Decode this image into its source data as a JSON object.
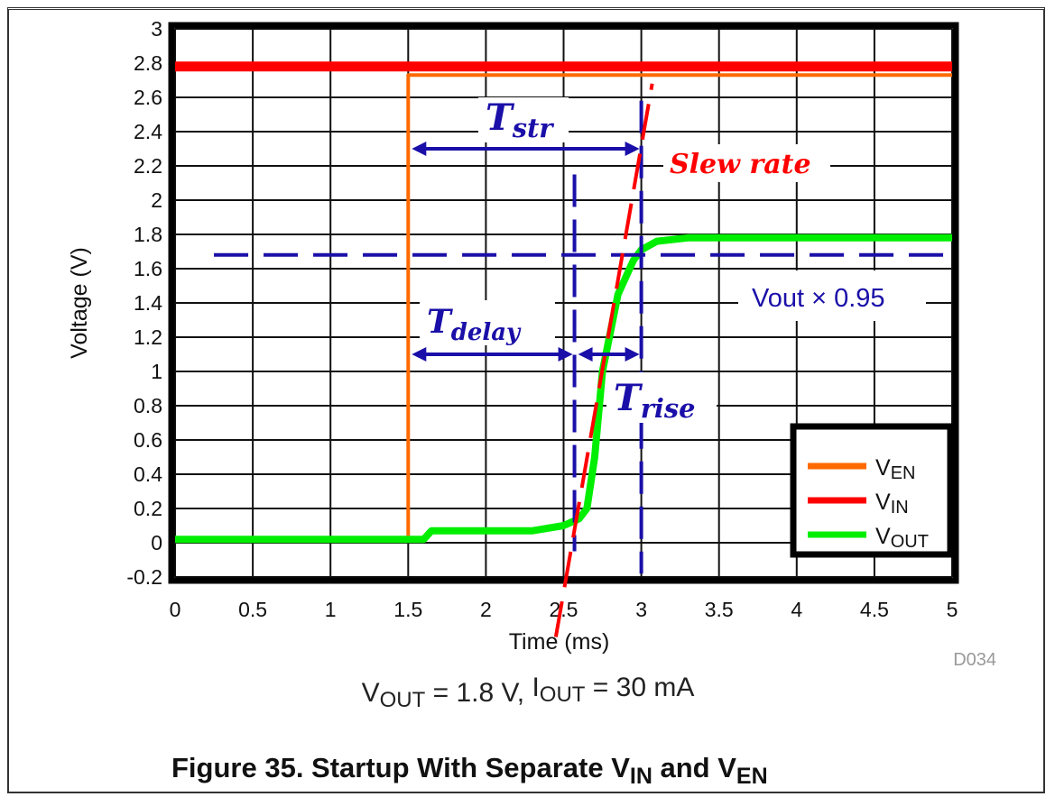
{
  "chart_data": {
    "type": "line",
    "xlabel": "Time (ms)",
    "ylabel": "Voltage (V)",
    "xlim": [
      0,
      5
    ],
    "ylim": [
      -0.2,
      3
    ],
    "xticks": [
      "0",
      "0.5",
      "1",
      "1.5",
      "2",
      "2.5",
      "3",
      "3.5",
      "4",
      "4.5",
      "5"
    ],
    "yticks": [
      "-0.2",
      "0",
      "0.2",
      "0.4",
      "0.6",
      "0.8",
      "1",
      "1.2",
      "1.4",
      "1.6",
      "1.8",
      "2",
      "2.2",
      "2.4",
      "2.6",
      "2.8",
      "3"
    ],
    "grid": true,
    "legend_placement": "bottom-right",
    "series": [
      {
        "name": "EN",
        "prefix": "V",
        "color": "#ff6a00",
        "x": [
          0,
          1.5,
          1.5,
          5
        ],
        "y": [
          0.02,
          0.02,
          2.73,
          2.73
        ]
      },
      {
        "name": "IN",
        "prefix": "V",
        "color": "#ff0000",
        "x": [
          0,
          5
        ],
        "y": [
          2.78,
          2.78
        ]
      },
      {
        "name": "OUT",
        "prefix": "V",
        "color": "#00ee00",
        "x": [
          0,
          1.6,
          1.65,
          2.3,
          2.5,
          2.6,
          2.65,
          2.7,
          2.75,
          2.85,
          2.95,
          3.0,
          3.1,
          3.3,
          5
        ],
        "y": [
          0.02,
          0.02,
          0.07,
          0.07,
          0.1,
          0.14,
          0.2,
          0.5,
          1.0,
          1.45,
          1.65,
          1.71,
          1.76,
          1.78,
          1.78
        ]
      }
    ],
    "watermark": "D034",
    "annotations": {
      "color_blue": "#1a0fa8",
      "color_red": "#ff0000",
      "vout95_level": 1.68,
      "vout95_label": "Vout × 0.95",
      "t_delay_end": 2.57,
      "t_rise_end": 3.0,
      "t_start": 1.5,
      "tstr_label": {
        "main": "T",
        "sub": "str"
      },
      "tdelay_label": {
        "main": "T",
        "sub": "delay"
      },
      "trise_label": {
        "main": "T",
        "sub": "rise"
      },
      "slew_label": "Slew rate",
      "slew_line": {
        "x": [
          2.45,
          3.07
        ],
        "y": [
          -0.55,
          2.68
        ]
      }
    }
  },
  "caption": {
    "condition": {
      "v": "V",
      "v_sub": "OUT",
      "v_val": " = 1.8 V, ",
      "i": "I",
      "i_sub": "OUT",
      "i_val": " = 30 mA"
    },
    "figure_number": "Figure 35.",
    "title_parts": [
      "Startup With Separate V",
      "IN",
      " and V",
      "EN"
    ]
  }
}
